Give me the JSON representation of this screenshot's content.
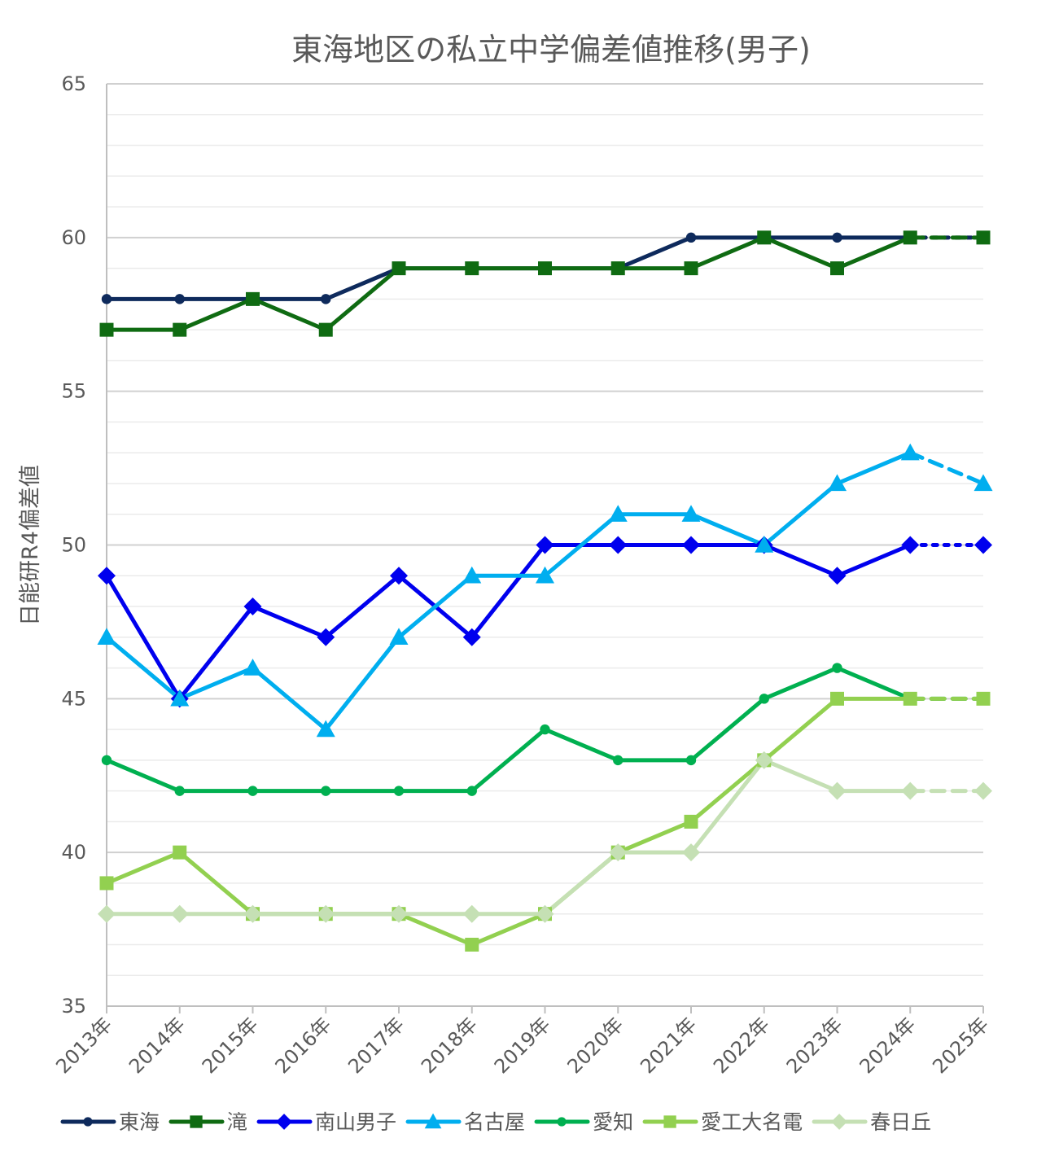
{
  "chart_data": {
    "type": "line",
    "title": "東海地区の私立中学偏差値推移(男子)",
    "xlabel": "",
    "ylabel": "日能研R4偏差値",
    "ylim": [
      35,
      65
    ],
    "ymajor_ticks": [
      35,
      40,
      45,
      50,
      55,
      60,
      65
    ],
    "y_minor_step": 1,
    "grid": true,
    "legend_position": "bottom",
    "categories": [
      "2013年",
      "2014年",
      "2015年",
      "2016年",
      "2017年",
      "2018年",
      "2019年",
      "2020年",
      "2021年",
      "2022年",
      "2023年",
      "2024年",
      "2025年"
    ],
    "last_segment_note": "final year segment drawn dotted/dashed (projection)",
    "series": [
      {
        "name": "東海",
        "color": "#0e2a5c",
        "marker": "circle",
        "last_dash": "dotted",
        "values": [
          58,
          58,
          58,
          58,
          59,
          59,
          59,
          59,
          60,
          60,
          60,
          60,
          60
        ]
      },
      {
        "name": "滝",
        "color": "#0f6b12",
        "marker": "square",
        "last_dash": "dashed",
        "values": [
          57,
          57,
          58,
          57,
          59,
          59,
          59,
          59,
          59,
          60,
          59,
          60,
          60
        ]
      },
      {
        "name": "南山男子",
        "color": "#0000ee",
        "marker": "diamond",
        "last_dash": "dotted",
        "values": [
          49,
          45,
          48,
          47,
          49,
          47,
          50,
          50,
          50,
          50,
          49,
          50,
          50
        ]
      },
      {
        "name": "名古屋",
        "color": "#00aeef",
        "marker": "triangle",
        "last_dash": "dashed",
        "values": [
          47,
          45,
          46,
          44,
          47,
          49,
          49,
          51,
          51,
          50,
          52,
          53,
          52
        ]
      },
      {
        "name": "愛知",
        "color": "#00b050",
        "marker": "circle",
        "last_dash": "dashed",
        "values": [
          43,
          42,
          42,
          42,
          42,
          42,
          44,
          43,
          43,
          45,
          46,
          45,
          45
        ]
      },
      {
        "name": "愛工大名電",
        "color": "#92d050",
        "marker": "square",
        "last_dash": "dashed",
        "values": [
          39,
          40,
          38,
          38,
          38,
          37,
          38,
          40,
          41,
          43,
          45,
          45,
          45
        ]
      },
      {
        "name": "春日丘",
        "color": "#c5e0b4",
        "marker": "diamond",
        "last_dash": "dashed",
        "values": [
          38,
          38,
          38,
          38,
          38,
          38,
          38,
          40,
          40,
          43,
          42,
          42,
          42
        ]
      }
    ]
  }
}
